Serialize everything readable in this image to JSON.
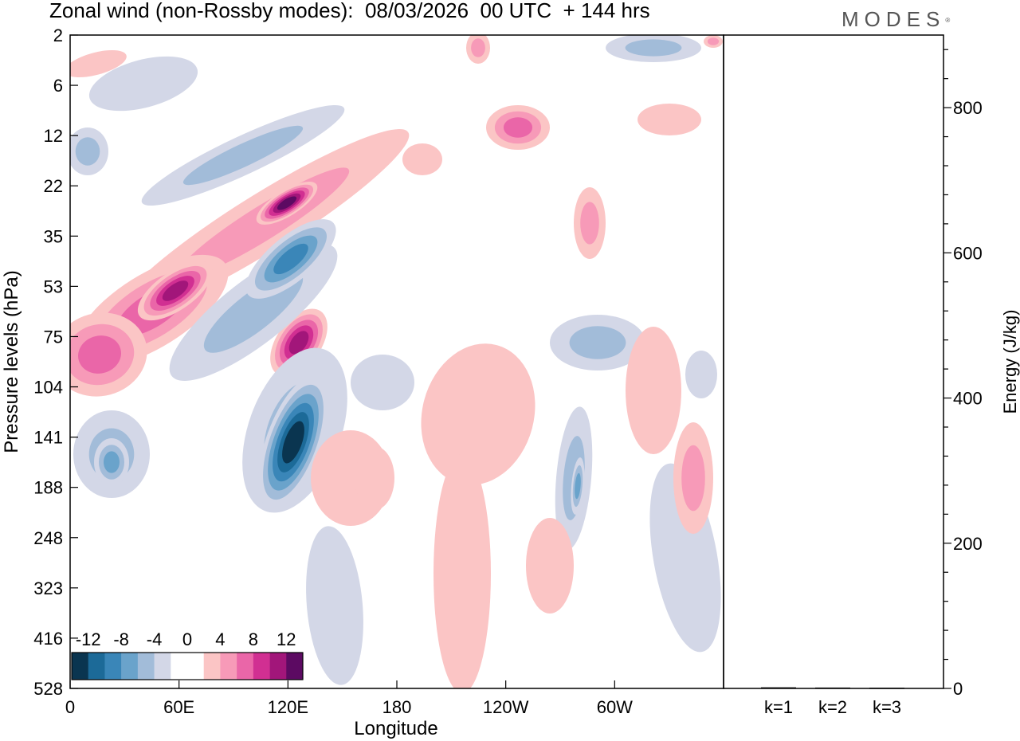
{
  "header": {
    "title": "Zonal wind (non-Rossby modes):  08/03/2026  00 UTC  + 144 hrs",
    "logo_text": "MODES",
    "logo_mark": "®"
  },
  "chart_data": [
    {
      "type": "heatmap",
      "title": "Zonal wind (non-Rossby modes):  08/03/2026  00 UTC  + 144 hrs",
      "xlabel": "Longitude",
      "ylabel": "Pressure levels (hPa)",
      "x_ticks": [
        {
          "label": "0",
          "lon": 0
        },
        {
          "label": "60E",
          "lon": 60
        },
        {
          "label": "120E",
          "lon": 120
        },
        {
          "label": "180",
          "lon": 180
        },
        {
          "label": "120W",
          "lon": 240
        },
        {
          "label": "60W",
          "lon": 300
        }
      ],
      "xlim": [
        0,
        360
      ],
      "y_levels": [
        "2",
        "6",
        "12",
        "22",
        "35",
        "53",
        "75",
        "104",
        "141",
        "188",
        "248",
        "323",
        "416",
        "528"
      ],
      "colorbar": {
        "labels": [
          "-12",
          "-8",
          "-4",
          "0",
          "4",
          "8",
          "12"
        ],
        "colors": [
          "#0a3550",
          "#1c6a98",
          "#3a86b8",
          "#6aa3cb",
          "#a2bcd9",
          "#d3d7e7",
          "#ffffff",
          "#ffffff",
          "#fbc5c5",
          "#f79ab8",
          "#ea66a8",
          "#d12f92",
          "#a2167a",
          "#5c0a62"
        ]
      },
      "features": [
        {
          "sign": "positive",
          "peak": 12,
          "lon": 122,
          "level": "22"
        },
        {
          "sign": "positive",
          "peak": 9,
          "lon": 65,
          "level": "53"
        },
        {
          "sign": "positive",
          "peak": 8,
          "lon": 15,
          "level": "75"
        },
        {
          "sign": "positive",
          "peak": 10,
          "lon": 120,
          "level": "75"
        },
        {
          "sign": "negative",
          "peak": -14,
          "lon": 120,
          "level": "141"
        },
        {
          "sign": "negative",
          "peak": -8,
          "lon": 120,
          "level": "53"
        },
        {
          "sign": "negative",
          "peak": -8,
          "lon": 280,
          "level": "188"
        },
        {
          "sign": "negative",
          "peak": -6,
          "lon": 20,
          "level": "141"
        }
      ]
    },
    {
      "type": "bar",
      "ylabel": "Energy (J/kg)",
      "categories": [
        "k=1",
        "k=2",
        "k=3"
      ],
      "values": [
        1.5,
        1.2,
        1.0
      ],
      "ylim": [
        0,
        900
      ],
      "y_ticks": [
        "0",
        "200",
        "400",
        "600",
        "800"
      ]
    }
  ]
}
